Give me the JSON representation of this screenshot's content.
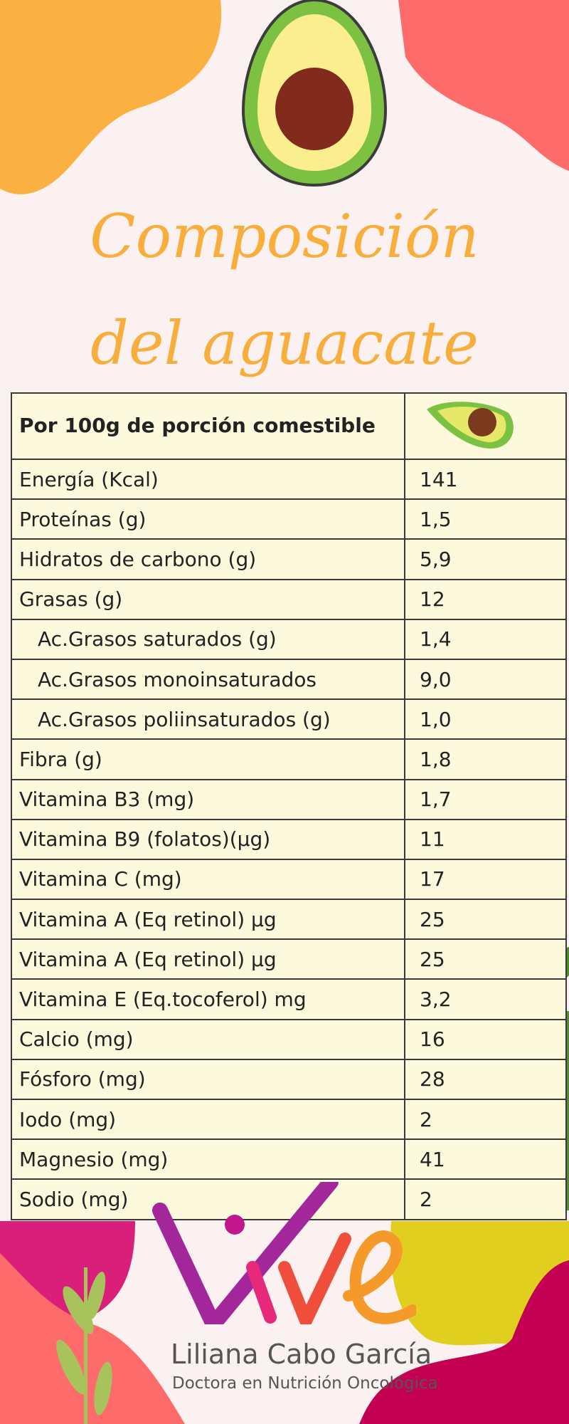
{
  "title": {
    "line1": "Composición",
    "line2": "del aguacate"
  },
  "table": {
    "header": "Por 100g de porción comestible",
    "header_icon": "avocado-half-icon",
    "rows": [
      {
        "label": "Energía (Kcal)",
        "value": "141"
      },
      {
        "label": "Proteínas (g)",
        "value": "1,5"
      },
      {
        "label": "Hidratos de carbono (g)",
        "value": "5,9"
      },
      {
        "label": "Grasas (g)",
        "value": "12"
      },
      {
        "label": "Ac.Grasos saturados (g)",
        "value": "1,4"
      },
      {
        "label": "Ac.Grasos monoinsaturados",
        "value": "9,0"
      },
      {
        "label": "Ac.Grasos poliinsaturados (g)",
        "value": "1,0"
      },
      {
        "label": "Fibra (g)",
        "value": "1,8"
      },
      {
        "label": "Vitamina B3 (mg)",
        "value": "1,7"
      },
      {
        "label": "Vitamina B9 (folatos)(µg)",
        "value": "11"
      },
      {
        "label": "Vitamina C (mg)",
        "value": "17"
      },
      {
        "label": "Vitamina A (Eq retinol) µg",
        "value": "25"
      },
      {
        "label": "Vitamina A (Eq retinol) µg",
        "value": "25"
      },
      {
        "label": "Vitamina E (Eq.tocoferol) mg",
        "value": "3,2"
      },
      {
        "label": "Calcio (mg)",
        "value": "16"
      },
      {
        "label": "Fósforo (mg)",
        "value": "28"
      },
      {
        "label": "Iodo (mg)",
        "value": "2"
      },
      {
        "label": "Magnesio (mg)",
        "value": "41"
      },
      {
        "label": "Sodio (mg)",
        "value": "2"
      }
    ]
  },
  "footer": {
    "logo": "Vive",
    "name": "Liliana Cabo García",
    "subtitle": "Doctora en Nutrición Oncológica"
  },
  "colors": {
    "title": "#f8ae3c",
    "table_bg": "#fdf9dc",
    "background": "#fcf1f1"
  }
}
